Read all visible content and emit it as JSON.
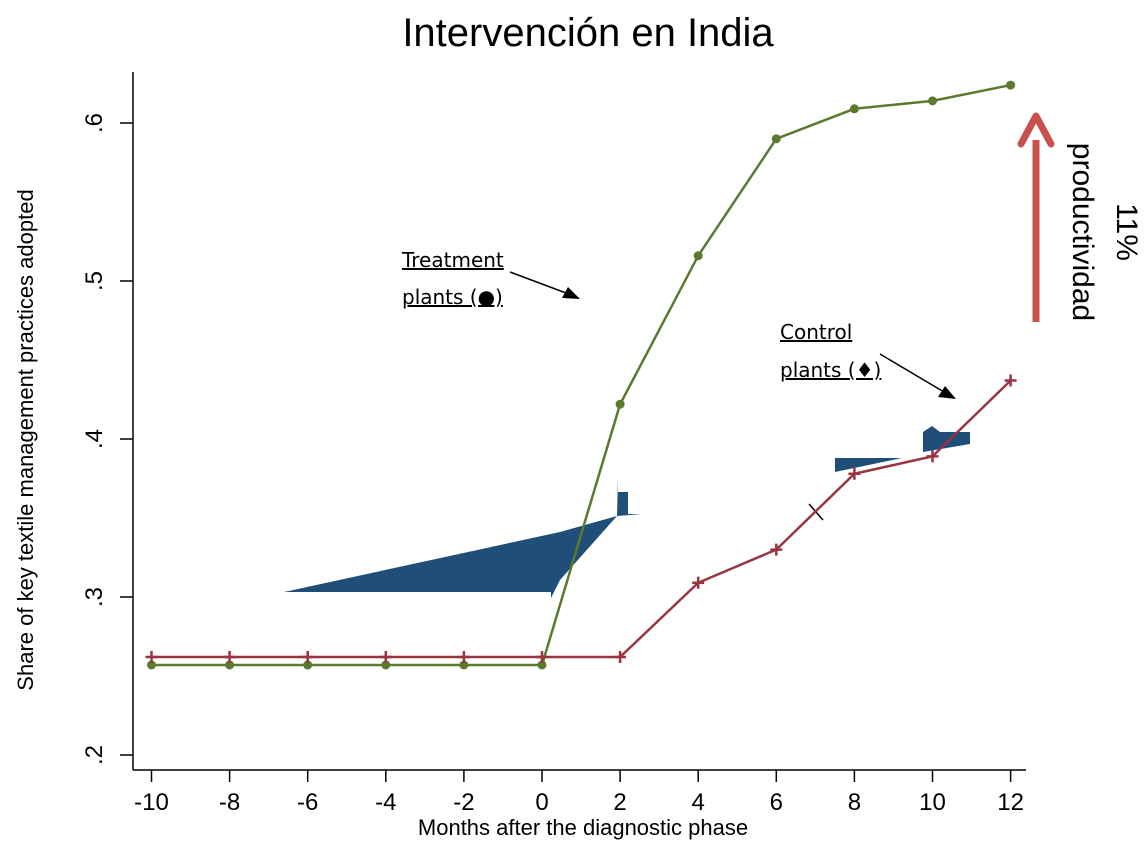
{
  "chart_data": {
    "type": "line",
    "title": "Intervención en India",
    "xlabel": "Months after the diagnostic phase",
    "ylabel": "Share of key textile management practices adopted",
    "x": [
      -10,
      -8,
      -6,
      -4,
      -2,
      0,
      2,
      4,
      6,
      8,
      10,
      12
    ],
    "xticks": [
      "-10",
      "-8",
      "-6",
      "-4",
      "-2",
      "0",
      "2",
      "4",
      "6",
      "8",
      "10",
      "12"
    ],
    "yticks": [
      ".2",
      ".3",
      ".4",
      ".5",
      ".6"
    ],
    "ytick_values": [
      0.2,
      0.3,
      0.4,
      0.5,
      0.6
    ],
    "xlim": [
      -10.2,
      12.2
    ],
    "ylim": [
      0.19,
      0.63
    ],
    "grid": false,
    "legend": "none",
    "series": [
      {
        "color": "#5a7a2e",
        "marker": "circle",
        "values": [
          0.257,
          0.257,
          0.257,
          0.257,
          0.257,
          0.257,
          0.422,
          0.516,
          0.59,
          0.609,
          0.614,
          0.624
        ]
      },
      {
        "color": "#9b3440",
        "marker": "plus",
        "values": [
          0.262,
          0.262,
          0.262,
          0.262,
          0.262,
          0.262,
          0.262,
          0.309,
          0.33,
          0.378,
          0.389,
          0.437
        ]
      }
    ],
    "annotations": {
      "treatment_line1": "Treatment",
      "treatment_line2": "plants (●)",
      "control_line1": "Control",
      "control_line2": "plants (♦)",
      "effect_line1": "11%",
      "effect_line2": "productividad"
    },
    "arrow_color": "#c9504c"
  }
}
